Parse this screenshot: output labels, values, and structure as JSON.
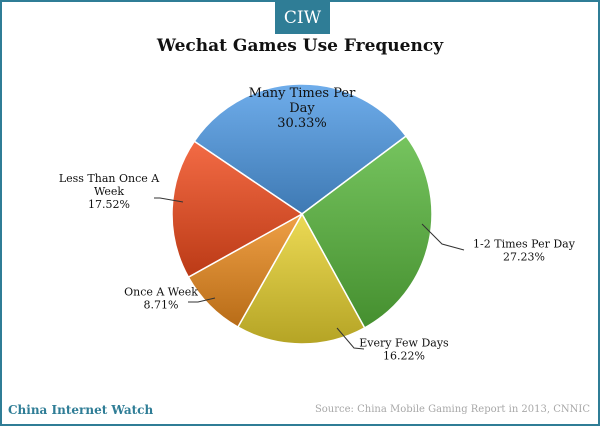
{
  "brand_badge": "CIW",
  "footer": {
    "brand": "China Internet Watch",
    "source": "Source: China Mobile Gaming Report in 2013, CNNIC"
  },
  "chart_data": {
    "type": "pie",
    "title": "Wechat Games Use Frequency",
    "slices": [
      {
        "label_lines": [
          "Many Times Per",
          "Day"
        ],
        "value": 30.33,
        "value_label": "30.33%",
        "color": "#4f9be6"
      },
      {
        "label_lines": [
          "1-2 Times Per Day"
        ],
        "value": 27.23,
        "value_label": "27.23%",
        "color": "#58b73c"
      },
      {
        "label_lines": [
          "Every Few Days"
        ],
        "value": 16.22,
        "value_label": "16.22%",
        "color": "#e8d230"
      },
      {
        "label_lines": [
          "Once A Week"
        ],
        "value": 8.71,
        "value_label": "8.71%",
        "color": "#ec8b1d"
      },
      {
        "label_lines": [
          "Less Than Once A",
          "Week"
        ],
        "value": 17.52,
        "value_label": "17.52%",
        "color": "#f04a1c"
      }
    ]
  }
}
